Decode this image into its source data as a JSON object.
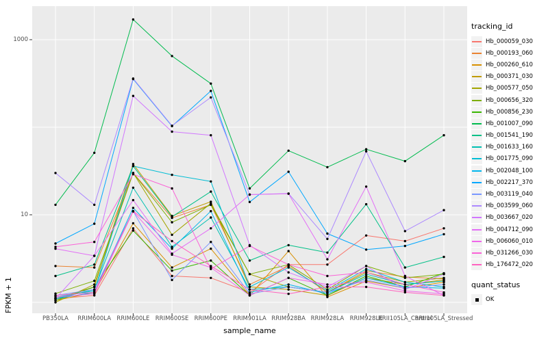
{
  "legend": {
    "tracking_title": "tracking_id",
    "quant_title": "quant_status",
    "quant_ok": "OK"
  },
  "chart_data": {
    "type": "line",
    "title": "",
    "xlabel": "sample_name",
    "ylabel": "FPKM + 1",
    "y_scale": "log10",
    "ylim": [
      0.75,
      2400
    ],
    "y_tick_values": [
      10,
      1000
    ],
    "y_tick_labels": [
      "10",
      "1000"
    ],
    "y_gridline_values": [
      1,
      10,
      100,
      1000
    ],
    "grid": "major-white-on-gray",
    "legend_position": "right",
    "panel_bg": "#EBEBEB",
    "gridline_color": "#FFFFFF",
    "point_color": "#000000",
    "quant_status_values": [
      "OK"
    ],
    "x_categories": [
      "PB350LA",
      "RRIM600LA",
      "RRIM600LE",
      "RRIM600SE",
      "RRIM600PE",
      "RRIM901LA",
      "RRIM928BA",
      "RRIM928LA",
      "RRIM928LE",
      "RRII105LA_Control",
      "RRII105LA_Stressed"
    ],
    "series": [
      {
        "name": "Hb_000059_030",
        "color": "#F8766D",
        "values": [
          1.1,
          1.2,
          7.0,
          2.0,
          1.9,
          1.3,
          2.7,
          2.7,
          5.8,
          5.0,
          7.0
        ]
      },
      {
        "name": "Hb_000193_060",
        "color": "#EA8331",
        "values": [
          2.6,
          2.5,
          30,
          9.2,
          13.0,
          1.6,
          2.6,
          1.3,
          2.3,
          1.95,
          1.85
        ]
      },
      {
        "name": "Hb_000260_610",
        "color": "#D89000",
        "values": [
          1.05,
          1.3,
          8.0,
          2.5,
          4.1,
          1.2,
          3.85,
          1.15,
          1.75,
          1.45,
          1.7
        ]
      },
      {
        "name": "Hb_000371_030",
        "color": "#C09B00",
        "values": [
          1.1,
          1.5,
          38,
          9.7,
          14.1,
          1.5,
          1.4,
          1.2,
          1.9,
          1.6,
          1.8
        ]
      },
      {
        "name": "Hb_000577_050",
        "color": "#A3A500",
        "values": [
          1.0,
          1.6,
          30,
          5.9,
          13.5,
          2.1,
          1.5,
          1.3,
          2.2,
          1.7,
          1.9
        ]
      },
      {
        "name": "Hb_000656_320",
        "color": "#7CAE00",
        "values": [
          1.26,
          1.76,
          30,
          8.2,
          13.0,
          2.1,
          2.7,
          1.4,
          2.6,
          1.9,
          2.1
        ]
      },
      {
        "name": "Hb_000856_230",
        "color": "#39B600",
        "values": [
          1.05,
          1.5,
          6.6,
          2.3,
          3.0,
          1.2,
          1.9,
          1.2,
          2.0,
          1.5,
          2.15
        ]
      },
      {
        "name": "Hb_001007_090",
        "color": "#00BB4E",
        "values": [
          13,
          51,
          1700,
          650,
          315,
          20,
          54,
          35,
          56,
          41,
          81
        ]
      },
      {
        "name": "Hb_001541_190",
        "color": "#00C087",
        "values": [
          2.0,
          2.7,
          36,
          9.5,
          18.4,
          3.0,
          4.5,
          3.7,
          13.2,
          2.5,
          3.3
        ]
      },
      {
        "name": "Hb_001633_160",
        "color": "#00C0B2",
        "values": [
          1.1,
          1.4,
          20.4,
          4.3,
          9.3,
          1.4,
          1.5,
          1.3,
          2.1,
          1.6,
          1.75
        ]
      },
      {
        "name": "Hb_001775_090",
        "color": "#00BDD4",
        "values": [
          1.15,
          1.35,
          36,
          28.6,
          24,
          1.5,
          2.5,
          1.35,
          2.4,
          1.7,
          1.5
        ]
      },
      {
        "name": "Hb_002048_100",
        "color": "#00B5EC",
        "values": [
          1.1,
          1.3,
          12,
          4.1,
          11,
          1.3,
          1.6,
          1.25,
          1.9,
          1.5,
          1.45
        ]
      },
      {
        "name": "Hb_002217_370",
        "color": "#00A7FF",
        "values": [
          4.7,
          7.9,
          355,
          103,
          260,
          14,
          31,
          6.1,
          4.0,
          4.4,
          6.0
        ]
      },
      {
        "name": "Hb_003119_040",
        "color": "#7997FF",
        "values": [
          1.2,
          1.4,
          11,
          1.8,
          4.9,
          1.25,
          1.5,
          1.3,
          1.8,
          1.45,
          1.6
        ]
      },
      {
        "name": "Hb_003599_060",
        "color": "#AC88FF",
        "values": [
          30,
          13,
          360,
          104,
          219,
          17,
          17.5,
          5.3,
          53,
          6.5,
          11.3
        ]
      },
      {
        "name": "Hb_003667_020",
        "color": "#D176FF",
        "values": [
          1.1,
          3.4,
          228,
          89,
          81,
          4.5,
          2.2,
          1.5,
          2.6,
          1.4,
          2.1
        ]
      },
      {
        "name": "Hb_004712_090",
        "color": "#E36EF6",
        "values": [
          4.1,
          3.4,
          14.7,
          3.6,
          7.0,
          17,
          17.4,
          3.1,
          21,
          2.0,
          1.2
        ]
      },
      {
        "name": "Hb_006060_010",
        "color": "#F066EA",
        "values": [
          1.15,
          1.25,
          10.9,
          3.5,
          2.5,
          1.2,
          1.9,
          1.6,
          1.7,
          1.35,
          1.25
        ]
      },
      {
        "name": "Hb_031266_030",
        "color": "#FB61D7",
        "values": [
          4.3,
          4.9,
          29,
          20,
          2.4,
          4.4,
          2.7,
          2.0,
          2.2,
          1.6,
          1.3
        ]
      },
      {
        "name": "Hb_176472_020",
        "color": "#FF62BF",
        "values": [
          1.2,
          1.3,
          11,
          5.0,
          2.6,
          1.4,
          1.25,
          1.5,
          1.5,
          1.3,
          1.2
        ]
      }
    ]
  }
}
